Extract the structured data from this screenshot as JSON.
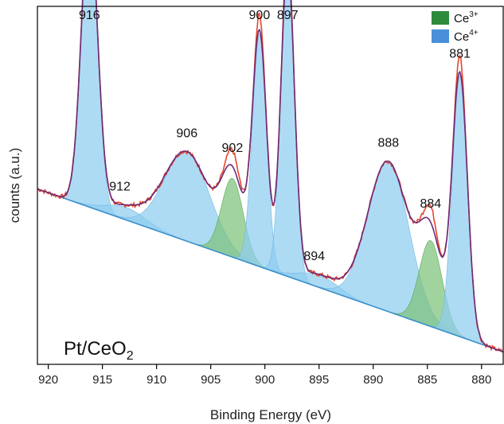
{
  "chart_data": {
    "type": "line",
    "title": "",
    "xlabel": "Binding Energy (eV)",
    "ylabel": "counts (a.u.)",
    "x_reversed": true,
    "xlim": [
      921,
      878
    ],
    "xticks": [
      920,
      915,
      910,
      905,
      900,
      895,
      890,
      885,
      880
    ],
    "ylim": [
      0,
      1
    ],
    "grid": false,
    "legend_position": "top-right",
    "sample_label_main": "Pt/CeO",
    "sample_label_sub": "2",
    "legend": [
      {
        "name": "Ce",
        "superscript": "3+",
        "color": "#2e8b3e"
      },
      {
        "name": "Ce",
        "superscript": "4+",
        "color": "#4a90d9"
      }
    ],
    "colors": {
      "experimental": "#e8452c",
      "fit": "#6b2c7a",
      "ce3_fill": "#7dc27a",
      "ce4_fill": "#8fcdf0",
      "background": "#3a8fc9"
    },
    "background": {
      "x": [
        921,
        878
      ],
      "y": [
        0.49,
        0.035
      ]
    },
    "peaks": [
      {
        "label": "916",
        "center": 916.2,
        "height": 0.8,
        "width": 0.75,
        "type": "Ce4+"
      },
      {
        "label": "912",
        "center": 912.8,
        "height": 0.035,
        "width": 1.9,
        "type": "Ce4+"
      },
      {
        "label": "906",
        "center": 907.2,
        "height": 0.25,
        "width": 2.1,
        "type": "Ce4+"
      },
      {
        "label": "902",
        "center": 903.0,
        "height": 0.22,
        "width": 1.0,
        "type": "Ce3+"
      },
      {
        "label": "900",
        "center": 900.5,
        "height": 0.65,
        "width": 0.65,
        "type": "Ce4+"
      },
      {
        "label": "897",
        "center": 897.9,
        "height": 0.86,
        "width": 0.62,
        "type": "Ce4+"
      },
      {
        "label": "894",
        "center": 895.0,
        "height": 0.035,
        "width": 1.8,
        "type": "Ce4+"
      },
      {
        "label": "888",
        "center": 888.6,
        "height": 0.42,
        "width": 1.9,
        "type": "Ce4+"
      },
      {
        "label": "884",
        "center": 884.7,
        "height": 0.24,
        "width": 1.05,
        "type": "Ce3+"
      },
      {
        "label": "881",
        "center": 882.0,
        "height": 0.73,
        "width": 0.7,
        "type": "Ce4+"
      }
    ]
  }
}
